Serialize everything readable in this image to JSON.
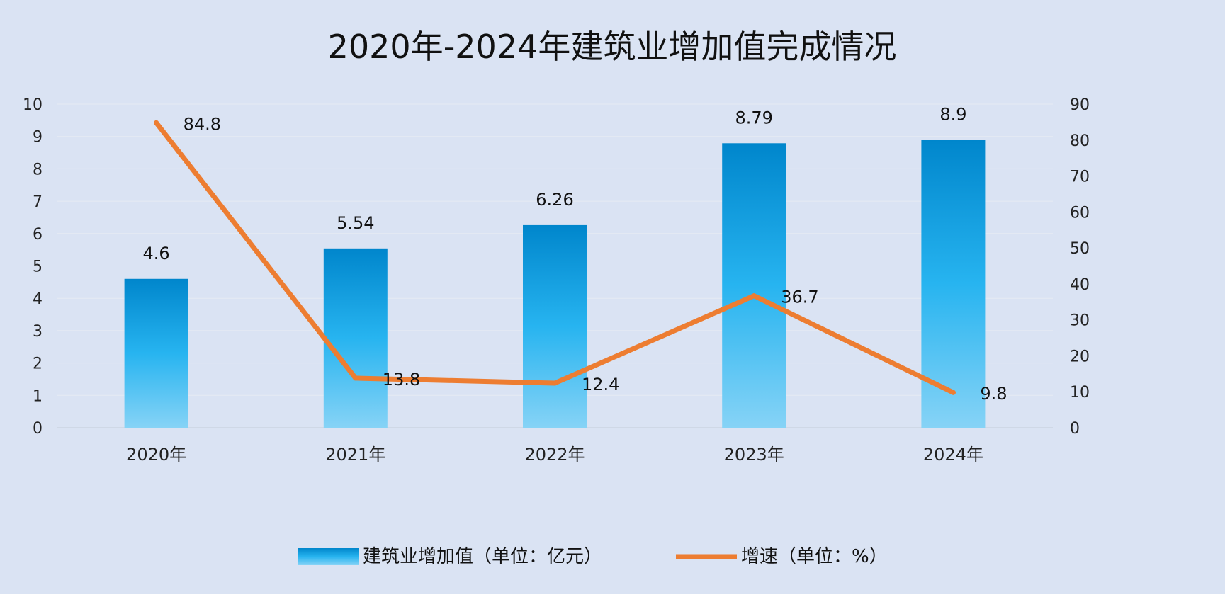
{
  "chart_data": {
    "type": "bar",
    "title": "2020年-2024年建筑业增加值完成情况",
    "categories": [
      "2020年",
      "2021年",
      "2022年",
      "2023年",
      "2024年"
    ],
    "series": [
      {
        "name": "建筑业增加值（单位：亿元）",
        "type": "bar",
        "axis": "left",
        "values": [
          4.6,
          5.54,
          6.26,
          8.79,
          8.9
        ],
        "color": "#1a9fe0"
      },
      {
        "name": "增速（单位：%）",
        "type": "line",
        "axis": "right",
        "values": [
          84.8,
          13.8,
          12.4,
          36.7,
          9.8
        ],
        "color": "#ed7d31"
      }
    ],
    "y_left": {
      "min": 0,
      "max": 10,
      "step": 1
    },
    "y_right": {
      "min": 0,
      "max": 90,
      "step": 10
    },
    "grid": true,
    "legend_position": "bottom",
    "background": "#dae3f3"
  }
}
